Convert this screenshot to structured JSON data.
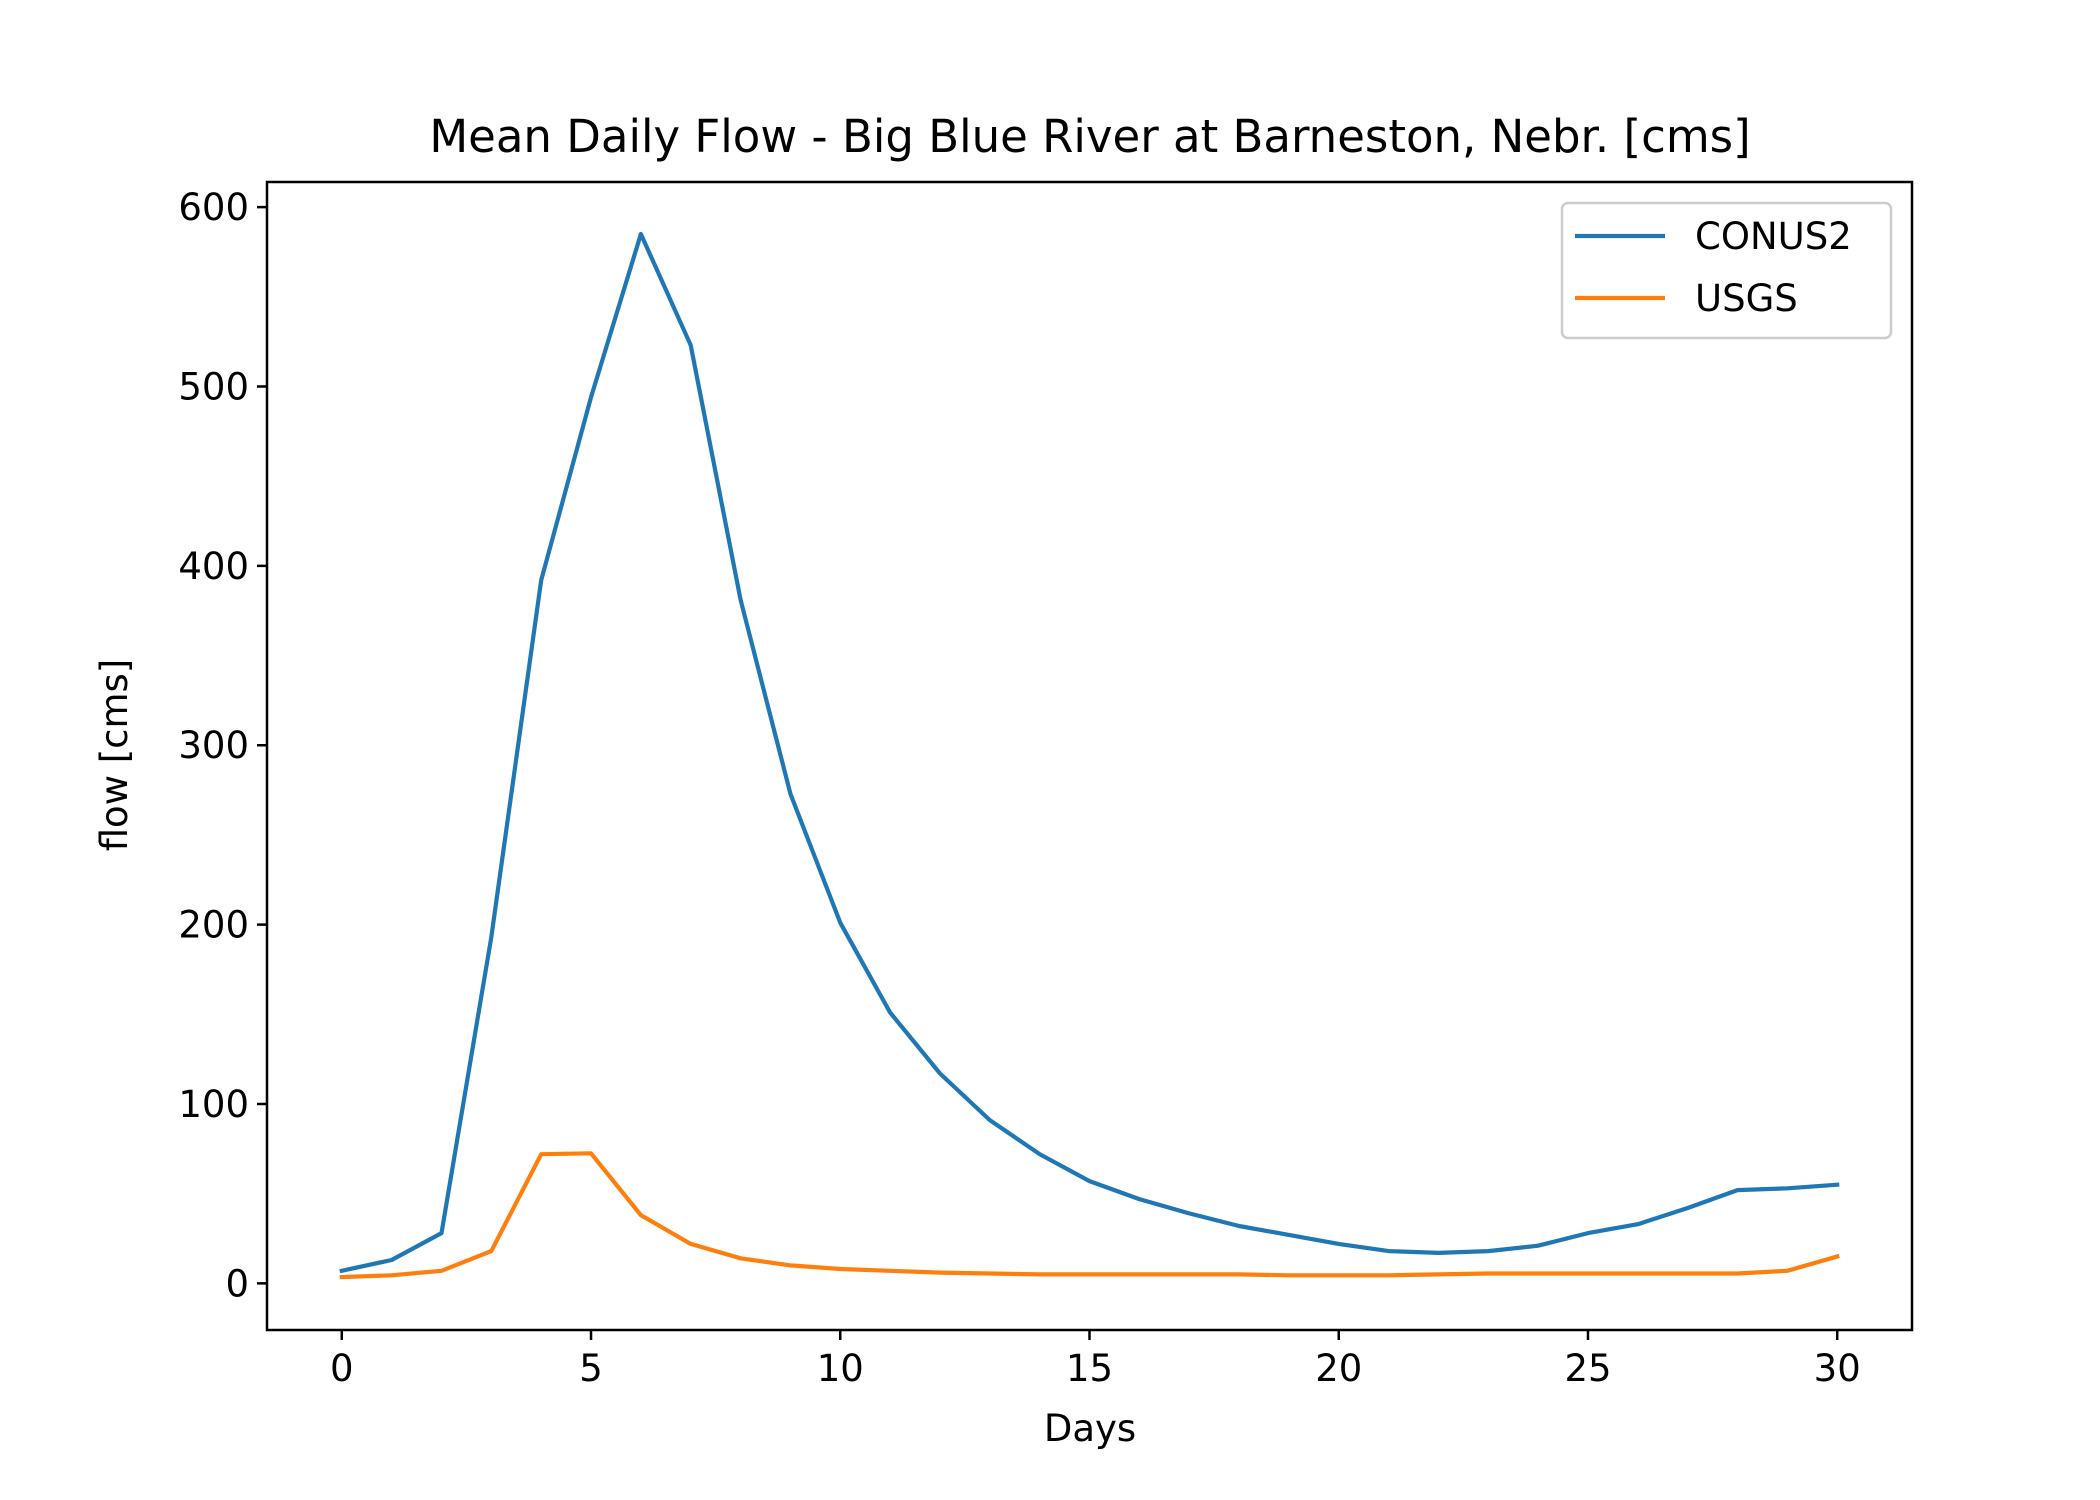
{
  "colors": {
    "background": "#ffffff",
    "axis": "#000000",
    "legend_border": "#cccccc"
  },
  "chart_data": {
    "type": "line",
    "title": "Mean Daily Flow - Big Blue River at Barneston, Nebr. [cms]",
    "xlabel": "Days",
    "ylabel": "flow [cms]",
    "xlim": [
      -1.5,
      31.5
    ],
    "ylim": [
      -26,
      614
    ],
    "xticks": [
      0,
      5,
      10,
      15,
      20,
      25,
      30
    ],
    "xtick_labels": [
      "0",
      "5",
      "10",
      "15",
      "20",
      "25",
      "30"
    ],
    "yticks": [
      0,
      100,
      200,
      300,
      400,
      500,
      600
    ],
    "ytick_labels": [
      "0",
      "100",
      "200",
      "300",
      "400",
      "500",
      "600"
    ],
    "grid": false,
    "legend_position": "top-right",
    "x": [
      0,
      1,
      2,
      3,
      4,
      5,
      6,
      7,
      8,
      9,
      10,
      11,
      12,
      13,
      14,
      15,
      16,
      17,
      18,
      19,
      20,
      21,
      22,
      23,
      24,
      25,
      26,
      27,
      28,
      29,
      30
    ],
    "series": [
      {
        "name": "CONUS2",
        "color": "#1f77b4",
        "values": [
          7,
          13,
          28,
          193,
          392,
          494,
          585,
          523,
          381,
          273,
          201,
          151,
          117,
          91,
          72,
          57,
          47,
          39,
          32,
          27,
          22,
          18,
          17,
          18,
          21,
          28,
          33,
          42,
          52,
          53,
          55
        ]
      },
      {
        "name": "USGS",
        "color": "#ff7f0e",
        "values": [
          3.5,
          4.5,
          7,
          18,
          72,
          72.5,
          38,
          22,
          14,
          10,
          8,
          7,
          6,
          5.5,
          5,
          5,
          5,
          5,
          5,
          4.5,
          4.5,
          4.5,
          5,
          5.5,
          5.5,
          5.5,
          5.5,
          5.5,
          5.5,
          7,
          15
        ]
      }
    ]
  }
}
